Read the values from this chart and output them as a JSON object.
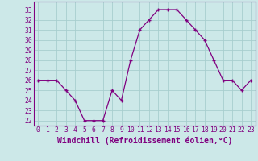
{
  "x": [
    0,
    1,
    2,
    3,
    4,
    5,
    6,
    7,
    8,
    9,
    10,
    11,
    12,
    13,
    14,
    15,
    16,
    17,
    18,
    19,
    20,
    21,
    22,
    23
  ],
  "y": [
    26,
    26,
    26,
    25,
    24,
    22,
    22,
    22,
    25,
    24,
    28,
    31,
    32,
    33,
    33,
    33,
    32,
    31,
    30,
    28,
    26,
    26,
    25,
    26
  ],
  "line_color": "#800080",
  "marker_color": "#800080",
  "bg_color": "#cce8e8",
  "grid_color": "#a8cece",
  "xlabel": "Windchill (Refroidissement éolien,°C)",
  "ylim_min": 21.5,
  "ylim_max": 33.8,
  "xlim_min": -0.5,
  "xlim_max": 23.5,
  "yticks": [
    22,
    23,
    24,
    25,
    26,
    27,
    28,
    29,
    30,
    31,
    32,
    33
  ],
  "xticks": [
    0,
    1,
    2,
    3,
    4,
    5,
    6,
    7,
    8,
    9,
    10,
    11,
    12,
    13,
    14,
    15,
    16,
    17,
    18,
    19,
    20,
    21,
    22,
    23
  ],
  "tick_label_color": "#800080",
  "tick_label_fontsize": 5.8,
  "xlabel_fontsize": 7.0,
  "border_color": "#800080",
  "linewidth": 0.9,
  "markersize": 3.5
}
